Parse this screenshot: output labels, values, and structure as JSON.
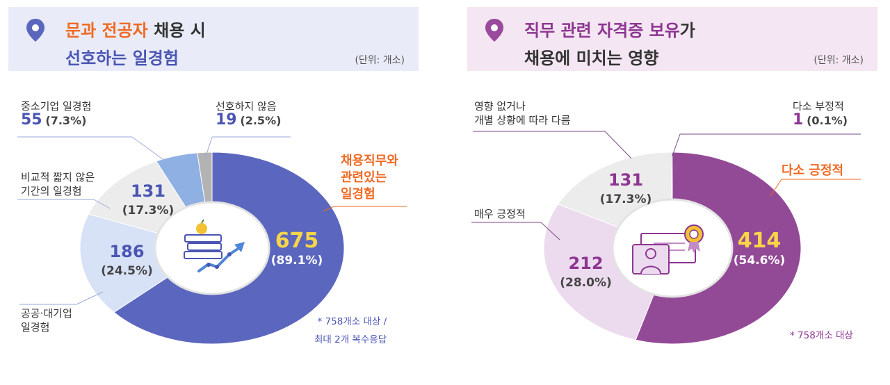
{
  "chart_data": [
    {
      "type": "pie",
      "title_part1_highlight": "문과 전공자",
      "title_part1_rest": " 채용 시",
      "title_part2": "선호하는 일경험",
      "unit": "(단위: 개소)",
      "slices": [
        {
          "label": "채용직무와 관련있는 일경험",
          "label_lines": [
            "채용직무와",
            "관련있는",
            "일경험"
          ],
          "value": 675,
          "pct": "(89.1%)",
          "color": "#5b67be"
        },
        {
          "label": "공공·대기업 일경험",
          "label_lines": [
            "공공·대기업",
            "일경험"
          ],
          "value": 186,
          "pct": "(24.5%)",
          "color": "#d7e2f7"
        },
        {
          "label": "비교적 짧지 않은 기간의 일경험",
          "label_lines": [
            "비교적 짧지 않은",
            "기간의 일경험"
          ],
          "value": 131,
          "pct": "(17.3%)",
          "color": "#ececec"
        },
        {
          "label": "중소기업 일경험",
          "label_lines": [
            "중소기업 일경험"
          ],
          "value": 55,
          "pct": "(7.3%)",
          "color": "#8fb0e2"
        },
        {
          "label": "선호하지 않음",
          "label_lines": [
            "선호하지 않음"
          ],
          "value": 19,
          "pct": "(2.5%)",
          "color": "#b3b3b3"
        }
      ],
      "note_lines": [
        "* 758개소 대상 /",
        "최대 2개 복수응답"
      ]
    },
    {
      "type": "pie",
      "title_part1_highlight": "직무 관련 자격증 보유",
      "title_part1_rest": "가",
      "title_part2": "채용에 미치는 영향",
      "unit": "(단위: 개소)",
      "slices": [
        {
          "label": "다소 긍정적",
          "label_lines": [
            "다소 긍정적"
          ],
          "value": 414,
          "pct": "(54.6%)",
          "color": "#934a96"
        },
        {
          "label": "매우 긍정적",
          "label_lines": [
            "매우 긍정적"
          ],
          "value": 212,
          "pct": "(28.0%)",
          "color": "#ecdbee"
        },
        {
          "label": "영향 없거나 개별 상황에 따라 다름",
          "label_lines": [
            "영향 없거나",
            "개별 상황에 따라 다름"
          ],
          "value": 131,
          "pct": "(17.3%)",
          "color": "#ececec"
        },
        {
          "label": "다소 부정적",
          "label_lines": [
            "다소 부정적"
          ],
          "value": 1,
          "pct": "(0.1%)",
          "color": "#333333"
        }
      ],
      "note_lines": [
        "* 758개소 대상"
      ]
    }
  ],
  "colors": {
    "left_accent": "#4a55b3",
    "right_accent": "#8d3592",
    "highlight_orange": "#f06a23",
    "pin_left": "#5b67be",
    "pin_right": "#9a4a9d"
  },
  "icons": [
    "location-pin-icon",
    "books-growth-icon",
    "certificate-person-icon"
  ]
}
